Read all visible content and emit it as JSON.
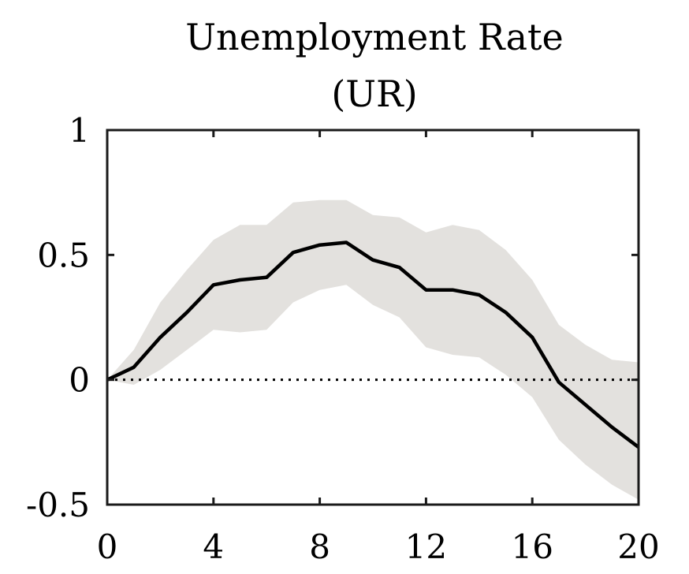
{
  "chart_data": {
    "type": "line",
    "title": "Unemployment Rate",
    "subtitle": "(UR)",
    "xlabel": "",
    "ylabel": "",
    "xlim": [
      0,
      20
    ],
    "ylim": [
      -0.5,
      1
    ],
    "x_ticks": [
      0,
      4,
      8,
      12,
      16,
      20
    ],
    "x_tick_labels": [
      "0",
      "4",
      "8",
      "12",
      "16",
      "20"
    ],
    "y_ticks": [
      -0.5,
      0,
      0.5,
      1
    ],
    "y_tick_labels": [
      "-0.5",
      "0",
      "0.5",
      "1"
    ],
    "grid": false,
    "reference_line": {
      "y": 0,
      "style": "dotted"
    },
    "x": [
      0,
      1,
      2,
      3,
      4,
      5,
      6,
      7,
      8,
      9,
      10,
      11,
      12,
      13,
      14,
      15,
      16,
      17,
      18,
      19,
      20
    ],
    "series": [
      {
        "values": [
          0,
          0.05,
          0.17,
          0.27,
          0.38,
          0.4,
          0.41,
          0.51,
          0.54,
          0.55,
          0.48,
          0.45,
          0.36,
          0.36,
          0.34,
          0.27,
          0.17,
          -0.01,
          -0.1,
          -0.19,
          -0.27
        ],
        "color": "#000000"
      }
    ],
    "band": {
      "lower": [
        0,
        -0.02,
        0.04,
        0.12,
        0.2,
        0.19,
        0.2,
        0.31,
        0.36,
        0.38,
        0.3,
        0.25,
        0.13,
        0.1,
        0.09,
        0.02,
        -0.07,
        -0.24,
        -0.34,
        -0.42,
        -0.48
      ],
      "upper": [
        0,
        0.12,
        0.31,
        0.44,
        0.56,
        0.62,
        0.62,
        0.71,
        0.72,
        0.72,
        0.66,
        0.65,
        0.59,
        0.62,
        0.6,
        0.52,
        0.4,
        0.22,
        0.14,
        0.08,
        0.07
      ],
      "color": "#e3e1de"
    }
  }
}
